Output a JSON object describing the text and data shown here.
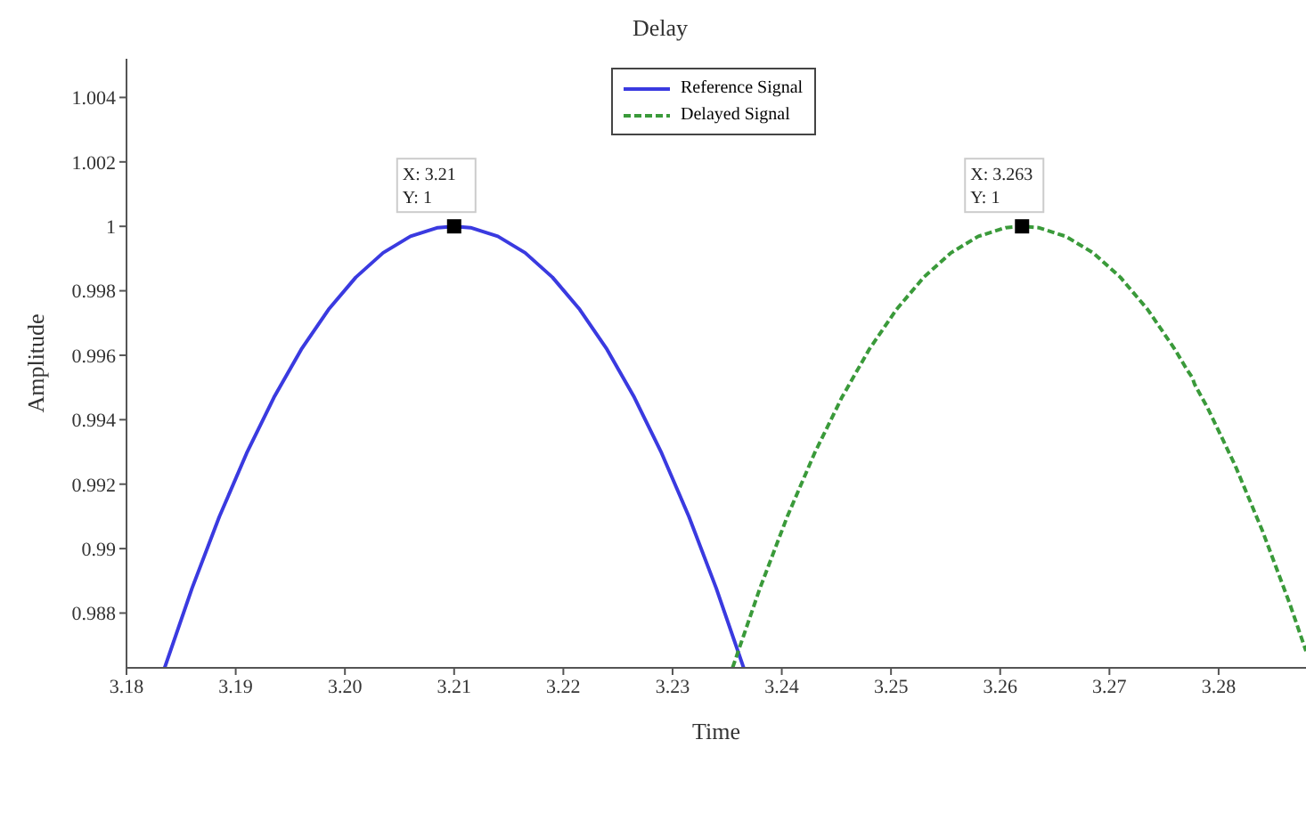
{
  "chart_data": {
    "type": "line",
    "title": "Delay",
    "xlabel": "Time",
    "ylabel": "Amplitude",
    "xlim": [
      3.18,
      3.288
    ],
    "xticks": [
      3.18,
      3.19,
      {
        "value": 3.2,
        "label": "3.20"
      },
      3.21,
      3.22,
      3.23,
      3.24,
      3.25,
      3.26,
      3.27,
      3.28
    ],
    "ylim": [
      0.9863,
      1.0052
    ],
    "yticks": [
      0.988,
      0.99,
      0.992,
      0.994,
      0.996,
      0.998,
      1,
      1.002,
      1.004
    ],
    "grid": false,
    "legend": "top",
    "marker": "none",
    "series": [
      {
        "name": "Reference Signal",
        "color": "#3a3ae0",
        "line_style": "solid",
        "x": [
          3.1835,
          3.186,
          3.1885,
          3.191,
          3.1935,
          3.196,
          3.1985,
          3.201,
          3.2035,
          3.206,
          3.2085,
          3.21,
          3.2115,
          3.214,
          3.2165,
          3.219,
          3.2215,
          3.224,
          3.2265,
          3.229,
          3.2315,
          3.234,
          3.2365
        ],
        "values": [
          0.98631,
          0.98877,
          0.99099,
          0.99296,
          0.99469,
          0.99618,
          0.99742,
          0.99842,
          0.99918,
          0.99969,
          0.99996,
          1,
          0.99996,
          0.99969,
          0.99918,
          0.99842,
          0.99742,
          0.99618,
          0.99469,
          0.99296,
          0.99099,
          0.98877,
          0.98631
        ]
      },
      {
        "name": "Delayed Signal",
        "color": "#3a9a3a",
        "line_style": "dashed",
        "x": [
          3.2355,
          3.238,
          3.2405,
          3.243,
          3.2455,
          3.248,
          3.2505,
          3.253,
          3.2555,
          3.258,
          3.2605,
          3.262,
          3.2635,
          3.266,
          3.2685,
          3.271,
          3.2735,
          3.276,
          3.277,
          3.2776,
          3.2778,
          3.279,
          3.2815,
          3.284,
          3.2865,
          3.288
        ],
        "values": [
          0.98631,
          0.98877,
          0.99099,
          0.99296,
          0.99469,
          0.99618,
          0.99742,
          0.99842,
          0.99918,
          0.99969,
          0.99996,
          1,
          0.99996,
          0.99969,
          0.99918,
          0.99842,
          0.99742,
          0.99618,
          0.99561,
          0.9953,
          0.9951,
          0.99436,
          0.99259,
          0.99056,
          0.9883,
          0.98682
        ]
      }
    ],
    "annotations": [
      {
        "text": "X: 3.21\nY: 1",
        "x": 3.21,
        "y": 1
      },
      {
        "text": "X: 3.263\nY: 1",
        "x": 3.262,
        "y": 1
      }
    ]
  }
}
